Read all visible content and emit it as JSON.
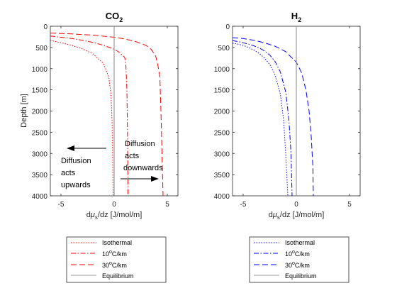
{
  "chart_data": [
    {
      "type": "line",
      "title": "CO",
      "title_subscript": "2",
      "xlabel_prefix": "d",
      "xlabel_mu": "μ",
      "xlabel_sub": "s",
      "xlabel_suffix": "/dz [J/mol/m]",
      "ylabel": "Depth [m]",
      "xlim": [
        -6,
        6
      ],
      "ylim": [
        0,
        4000
      ],
      "y_reversed": true,
      "xticks": [
        -5,
        0,
        5
      ],
      "yticks": [
        0,
        500,
        1000,
        1500,
        2000,
        2500,
        3000,
        3500,
        4000
      ],
      "grid": false,
      "line_color": "#ff0000",
      "series": [
        {
          "name": "Isothermal",
          "style": "dotted",
          "x": [
            -6,
            -5.5,
            -4.8,
            -4,
            -3,
            -2,
            -1,
            -0.5,
            -0.3,
            -0.2,
            -0.15,
            -0.1
          ],
          "y": [
            330,
            360,
            400,
            450,
            530,
            650,
            880,
            1200,
            1600,
            2200,
            3000,
            4000
          ]
        },
        {
          "name": "10oC/km",
          "style": "dashdot",
          "x": [
            -6,
            -5,
            -4,
            -3,
            -2,
            -1,
            0,
            0.5,
            0.8,
            1.0,
            1.1,
            1.2,
            1.25,
            1.3
          ],
          "y": [
            230,
            260,
            290,
            330,
            380,
            450,
            540,
            620,
            690,
            740,
            900,
            1500,
            2500,
            4000
          ]
        },
        {
          "name": "30oC/km",
          "style": "dashed",
          "x": [
            -6,
            -4,
            -2,
            0,
            1,
            2,
            3,
            3.5,
            3.9,
            4.1,
            4.3,
            4.4,
            4.5,
            4.6
          ],
          "y": [
            160,
            180,
            210,
            260,
            300,
            360,
            450,
            550,
            700,
            900,
            1200,
            2000,
            3000,
            4000
          ]
        },
        {
          "name": "Equilibrium",
          "style": "solid",
          "color": "#999999",
          "x": [
            0,
            0
          ],
          "y": [
            0,
            4000
          ]
        }
      ],
      "annotations": [
        {
          "lines": [
            "Diffusion",
            "acts",
            "downwards"
          ]
        },
        {
          "lines": [
            "Diffusion",
            "acts",
            "upwards"
          ]
        }
      ],
      "legend": [
        {
          "label": "Isothermal",
          "style": "dotted"
        },
        {
          "label_main": "10",
          "label_sup": "o",
          "label_rest": "C/km",
          "style": "dashdot"
        },
        {
          "label_main": "30",
          "label_sup": "o",
          "label_rest": "C/km",
          "style": "dashed"
        },
        {
          "label": "Equilibrium",
          "style": "solid"
        }
      ],
      "legend_placement": "below"
    },
    {
      "type": "line",
      "title": "H",
      "title_subscript": "2",
      "xlabel_prefix": "d",
      "xlabel_mu": "μ",
      "xlabel_sub": "s",
      "xlabel_suffix": "/dz [J/mol/m]",
      "ylabel": "",
      "xlim": [
        -6,
        6
      ],
      "ylim": [
        0,
        4000
      ],
      "y_reversed": true,
      "xticks": [
        -5,
        0,
        5
      ],
      "yticks": [
        0,
        500,
        1000,
        1500,
        2000,
        2500,
        3000,
        3500,
        4000
      ],
      "grid": false,
      "line_color": "#0000ff",
      "series": [
        {
          "name": "Isothermal",
          "style": "dotted",
          "x": [
            -6,
            -5.5,
            -5,
            -4.5,
            -4,
            -3.5,
            -3,
            -2.5,
            -2,
            -1.5,
            -1.2,
            -1.0,
            -0.8
          ],
          "y": [
            400,
            420,
            450,
            500,
            560,
            640,
            750,
            900,
            1150,
            1600,
            2200,
            3000,
            4000
          ]
        },
        {
          "name": "10oC/km",
          "style": "dashdot",
          "x": [
            -6,
            -5.5,
            -5,
            -4.5,
            -4,
            -3.5,
            -3,
            -2.5,
            -2,
            -1.5,
            -1,
            -0.7,
            -0.5,
            -0.4
          ],
          "y": [
            340,
            360,
            390,
            420,
            460,
            510,
            580,
            680,
            830,
            1080,
            1550,
            2200,
            3000,
            4000
          ]
        },
        {
          "name": "30oC/km",
          "style": "dashed",
          "x": [
            -6,
            -5,
            -4,
            -3,
            -2,
            -1,
            0,
            0.5,
            0.9,
            1.2,
            1.4,
            1.55,
            1.6
          ],
          "y": [
            270,
            290,
            330,
            390,
            470,
            600,
            850,
            1100,
            1500,
            2000,
            2600,
            3300,
            4000
          ]
        },
        {
          "name": "Equilibrium",
          "style": "solid",
          "color": "#999999",
          "x": [
            0,
            0
          ],
          "y": [
            0,
            4000
          ]
        }
      ],
      "legend": [
        {
          "label": "Isothermal",
          "style": "dotted"
        },
        {
          "label_main": "10",
          "label_sup": "o",
          "label_rest": "C/km",
          "style": "dashdot"
        },
        {
          "label_main": "30",
          "label_sup": "o",
          "label_rest": "C/km",
          "style": "dashed"
        },
        {
          "label": "Equilibrium",
          "style": "solid"
        }
      ],
      "legend_placement": "below"
    }
  ]
}
